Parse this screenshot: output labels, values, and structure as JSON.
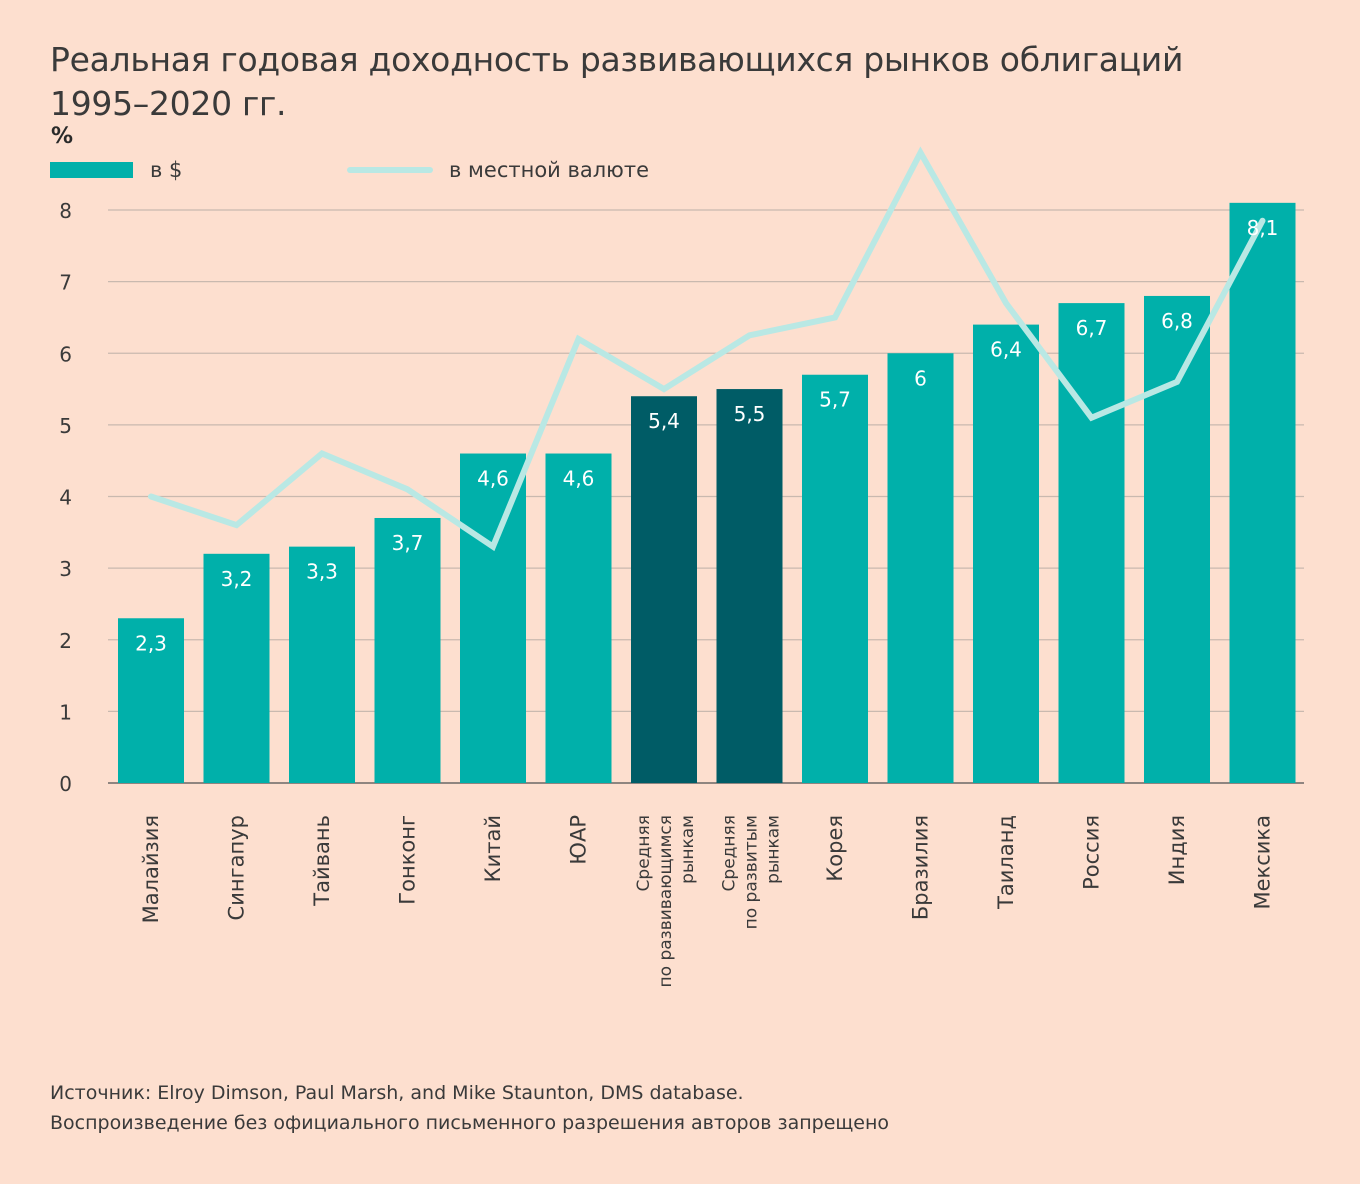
{
  "title_line1": "Реальная годовая доходность развивающихся рынков облигаций",
  "title_line2": "1995–2020 гг.",
  "unit": "%",
  "legend": {
    "bar_label": "в $",
    "line_label": "в местной валюте"
  },
  "colors": {
    "background": "#fddfcf",
    "bar": "#00b0aa",
    "bar_highlight": "#005c66",
    "line": "#b9e8e4",
    "grid": "#c9b9af",
    "bar_label": "#ffffff"
  },
  "chart_data": {
    "type": "bar",
    "ylim": [
      0,
      8
    ],
    "yticks": [
      0,
      1,
      2,
      3,
      4,
      5,
      6,
      7,
      8
    ],
    "grid": true,
    "legend_position": "top-left",
    "categories": [
      [
        "Малайзия"
      ],
      [
        "Сингапур"
      ],
      [
        "Тайвань"
      ],
      [
        "Гонконг"
      ],
      [
        "Китай"
      ],
      [
        "ЮАР"
      ],
      [
        "Средняя",
        "по развивающимся",
        "рынкам"
      ],
      [
        "Средняя",
        "по развитым",
        "рынкам"
      ],
      [
        "Корея"
      ],
      [
        "Бразилия"
      ],
      [
        "Таиланд"
      ],
      [
        "Россия"
      ],
      [
        "Индия"
      ],
      [
        "Мексика"
      ]
    ],
    "highlighted": [
      false,
      false,
      false,
      false,
      false,
      false,
      true,
      true,
      false,
      false,
      false,
      false,
      false,
      false
    ],
    "series": [
      {
        "name": "в $",
        "type": "bar",
        "values": [
          2.3,
          3.2,
          3.3,
          3.7,
          4.6,
          4.6,
          5.4,
          5.5,
          5.7,
          6,
          6.4,
          6.7,
          6.8,
          8.1
        ],
        "labels": [
          "2,3",
          "3,2",
          "3,3",
          "3,7",
          "4,6",
          "4,6",
          "5,4",
          "5,5",
          "5,7",
          "6",
          "6,4",
          "6,7",
          "6,8",
          "8,1"
        ]
      },
      {
        "name": "в местной валюте",
        "type": "line",
        "values": [
          4.0,
          3.6,
          4.6,
          4.1,
          3.3,
          6.2,
          5.5,
          6.25,
          6.5,
          8.8,
          6.7,
          5.1,
          5.6,
          7.85
        ]
      }
    ]
  },
  "source_line1": "Источник: Elroy Dimson, Paul Marsh, and Mike Staunton, DMS database.",
  "source_line2": "Воспроизведение без официального письменного разрешения авторов запрещено"
}
